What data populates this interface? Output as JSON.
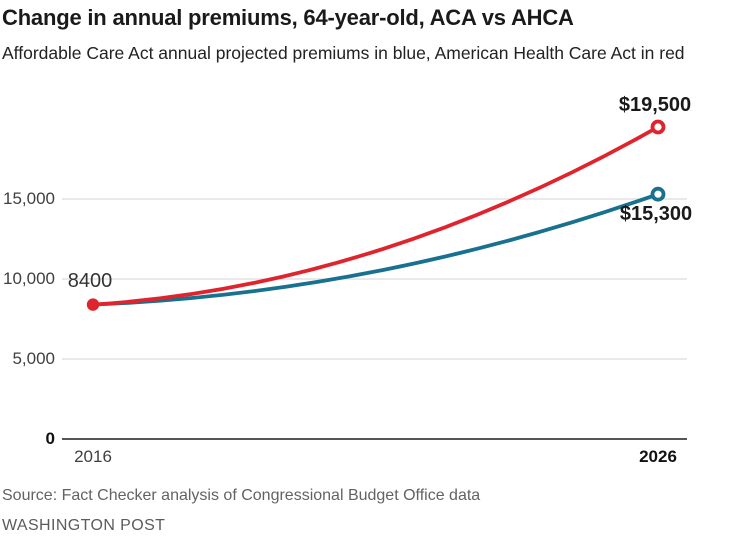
{
  "header": {
    "title": "Change in annual premiums, 64-year-old, ACA vs AHCA",
    "subtitle": "Affordable Care Act annual projected premiums in blue, American Health Care Act in red"
  },
  "chart_data": {
    "type": "line",
    "title": "Change in annual premiums, 64-year-old, ACA vs AHCA",
    "x": [
      2016,
      2026
    ],
    "xtick_labels": [
      "2016",
      "2026"
    ],
    "series": [
      {
        "name": "ACA (Affordable Care Act)",
        "color": "#17718f",
        "values": [
          8400,
          15300
        ],
        "end_label": "$15,300"
      },
      {
        "name": "AHCA (American Health Care Act)",
        "color": "#e0242e",
        "values": [
          8400,
          19500
        ],
        "end_label": "$19,500"
      }
    ],
    "start_label": "8400",
    "start_value": 8400,
    "ytick_values": [
      0,
      5000,
      10000,
      15000
    ],
    "ytick_labels": [
      "0",
      "5,000",
      "10,000",
      "15,000"
    ],
    "ylim": [
      0,
      21000
    ],
    "grid": "horizontal",
    "legend_position": "none",
    "colors": {
      "aca_blue": "#17718f",
      "ahca_red": "#e0242e",
      "gridline": "#dcdcdc",
      "axis": "#555555"
    }
  },
  "footer": {
    "source": "Source: Fact Checker analysis of Congressional Budget Office data",
    "credit": "WASHINGTON POST"
  }
}
